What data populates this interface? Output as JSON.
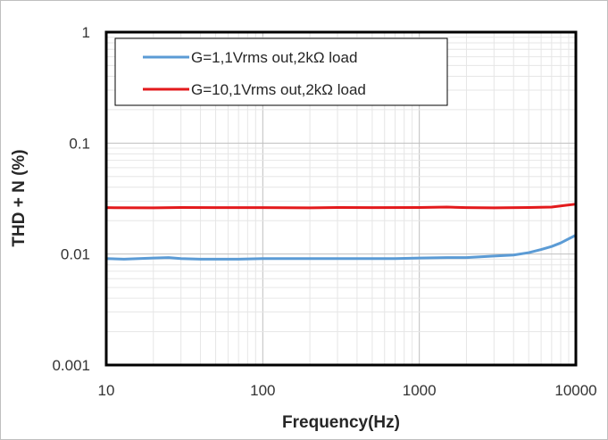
{
  "chart_data": {
    "type": "line",
    "title": "",
    "xlabel": "Frequency(Hz)",
    "ylabel": "THD + N  (%)",
    "x_scale": "log",
    "y_scale": "log",
    "xlim": [
      10,
      10000
    ],
    "ylim": [
      0.001,
      1
    ],
    "x_ticks": [
      "10",
      "100",
      "1000",
      "10000"
    ],
    "y_ticks": [
      "0.001",
      "0.01",
      "0.1",
      "1"
    ],
    "grid": true,
    "legend_position": "top-left",
    "series": [
      {
        "name": "G=1,1Vrms out,2kΩ load",
        "color": "#5b9bd5",
        "x": [
          10,
          13,
          20,
          25,
          30,
          40,
          50,
          70,
          100,
          150,
          200,
          300,
          400,
          500,
          700,
          1000,
          1500,
          2000,
          3000,
          4000,
          5000,
          6000,
          7000,
          8000,
          10000
        ],
        "y": [
          0.0091,
          0.009,
          0.0092,
          0.0093,
          0.0091,
          0.009,
          0.009,
          0.009,
          0.0091,
          0.0091,
          0.0091,
          0.0091,
          0.0091,
          0.0091,
          0.0091,
          0.0092,
          0.0093,
          0.0093,
          0.0096,
          0.0098,
          0.0103,
          0.011,
          0.0117,
          0.0126,
          0.0148
        ]
      },
      {
        "name": "G=10,1Vrms out,2kΩ load",
        "color": "#e31a1c",
        "x": [
          10,
          20,
          30,
          50,
          100,
          200,
          300,
          500,
          1000,
          1500,
          2000,
          3000,
          5000,
          7000,
          10000
        ],
        "y": [
          0.0262,
          0.0261,
          0.0263,
          0.0262,
          0.0262,
          0.0261,
          0.0263,
          0.0262,
          0.0263,
          0.0265,
          0.0262,
          0.0261,
          0.0263,
          0.0265,
          0.0282
        ]
      }
    ]
  }
}
